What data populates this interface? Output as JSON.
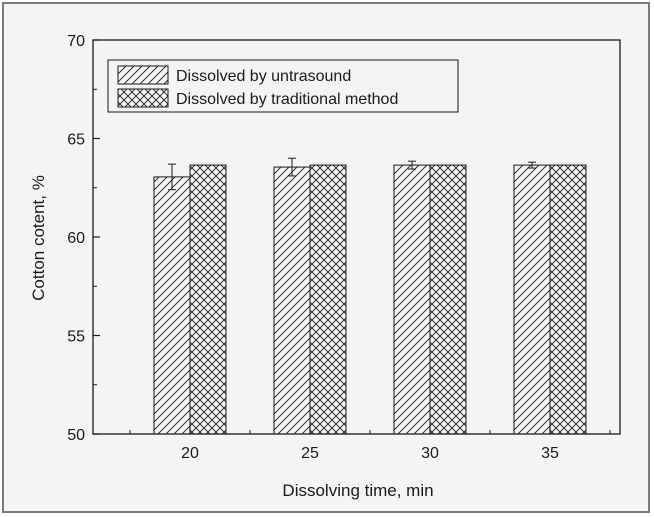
{
  "chart_data": {
    "type": "bar",
    "title": "",
    "xlabel": "Dissolving time, min",
    "ylabel": "Cotton cotent, %",
    "categories": [
      "20",
      "25",
      "30",
      "35"
    ],
    "ylim": [
      50,
      70
    ],
    "yticks": [
      50,
      55,
      60,
      65,
      70
    ],
    "grid": false,
    "legend_position": "top-left",
    "series": [
      {
        "name": "Dissolved by untrasound",
        "pattern": "diagonal-hatch",
        "values": [
          63.05,
          63.55,
          63.65,
          63.65
        ],
        "errors": [
          0.65,
          0.45,
          0.2,
          0.15
        ]
      },
      {
        "name": "Dissolved by traditional method",
        "pattern": "cross-hatch",
        "values": [
          63.65,
          63.65,
          63.65,
          63.65
        ],
        "errors": [
          0,
          0,
          0,
          0
        ]
      }
    ],
    "colors": {
      "ink": "#1a1a1a",
      "background": "#f4f4f4",
      "frame": "#7a7a7a"
    }
  }
}
